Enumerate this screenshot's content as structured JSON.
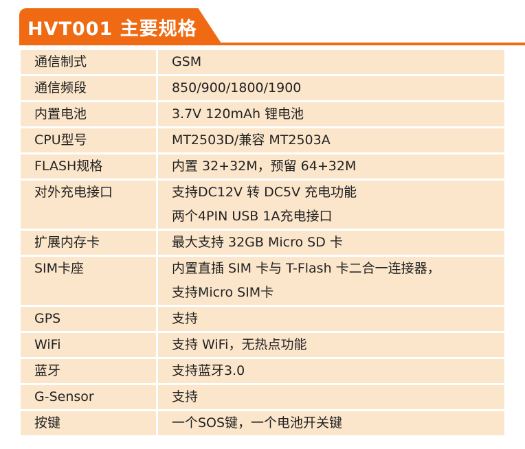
{
  "title": "HVT001 主要规格",
  "rows": [
    {
      "label": "通信制式",
      "values": [
        "GSM"
      ]
    },
    {
      "label": "通信频段",
      "values": [
        "850/900/1800/1900"
      ]
    },
    {
      "label": "内置电池",
      "values": [
        "3.7V 120mAh 锂电池"
      ]
    },
    {
      "label": "CPU型号",
      "values": [
        "MT2503D/兼容 MT2503A"
      ]
    },
    {
      "label": "FLASH规格",
      "values": [
        "内置 32+32M，预留 64+32M"
      ]
    },
    {
      "label": "对外充电接口",
      "values": [
        "支持DC12V 转 DC5V 充电功能",
        "两个4PIN USB 1A充电接口"
      ]
    },
    {
      "label": "扩展内存卡",
      "values": [
        "最大支持 32GB Micro SD 卡"
      ]
    },
    {
      "label": "SIM卡座",
      "values": [
        "内置直插 SIM 卡与 T-Flash 卡二合一连接器，",
        "支持Micro SIM卡"
      ]
    },
    {
      "label": "GPS",
      "values": [
        "支持"
      ]
    },
    {
      "label": "WiFi",
      "values": [
        "支持 WiFi，无热点功能"
      ]
    },
    {
      "label": "蓝牙",
      "values": [
        "支持蓝牙3.0"
      ]
    },
    {
      "label": "G-Sensor",
      "values": [
        "支持"
      ]
    },
    {
      "label": "按键",
      "values": [
        "一个SOS键，一个电池开关键"
      ]
    }
  ]
}
